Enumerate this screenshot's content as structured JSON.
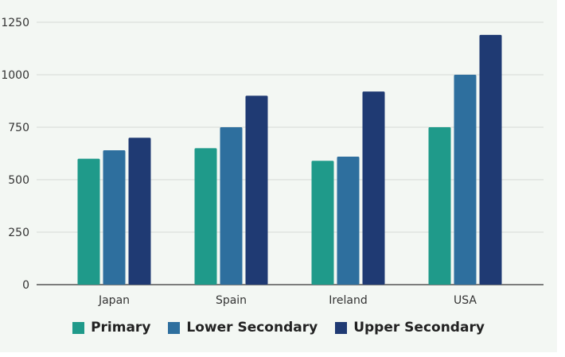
{
  "chart_data": {
    "type": "bar",
    "categories": [
      "Japan",
      "Spain",
      "Ireland",
      "USA"
    ],
    "series": [
      {
        "name": "Primary",
        "color": "#1f9a8a",
        "values": [
          600,
          650,
          590,
          750
        ]
      },
      {
        "name": "Lower Secondary",
        "color": "#2e6f9e",
        "values": [
          640,
          750,
          610,
          1000
        ]
      },
      {
        "name": "Upper Secondary",
        "color": "#1f3a73",
        "values": [
          700,
          900,
          920,
          1190
        ]
      }
    ],
    "title": "",
    "xlabel": "",
    "ylabel": "",
    "ylim": [
      0,
      1250
    ],
    "yticks": [
      0,
      250,
      500,
      750,
      1000,
      1250
    ],
    "grid": true,
    "legend_position": "bottom"
  }
}
